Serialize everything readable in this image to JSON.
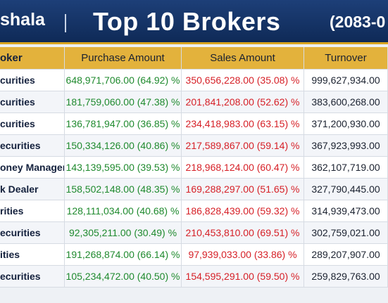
{
  "header": {
    "brand": "shala",
    "title": "Top 10 Brokers",
    "period": "(2083-0"
  },
  "table": {
    "columns": [
      "oker",
      "Purchase Amount",
      "Sales Amount",
      "Turnover"
    ],
    "rows": [
      [
        "curities",
        "648,971,706.00 (64.92) %",
        "350,656,228.00 (35.08) %",
        "999,627,934.00"
      ],
      [
        "curities",
        "181,759,060.00 (47.38) %",
        "201,841,208.00 (52.62) %",
        "383,600,268.00"
      ],
      [
        "curities",
        "136,781,947.00 (36.85) %",
        "234,418,983.00 (63.15) %",
        "371,200,930.00"
      ],
      [
        "ecurities",
        "150,334,126.00 (40.86) %",
        "217,589,867.00 (59.14) %",
        "367,923,993.00"
      ],
      [
        "oney Managers",
        "143,139,595.00 (39.53) %",
        "218,968,124.00 (60.47) %",
        "362,107,719.00"
      ],
      [
        "k Dealer",
        "158,502,148.00 (48.35) %",
        "169,288,297.00 (51.65) %",
        "327,790,445.00"
      ],
      [
        "rities",
        "128,111,034.00 (40.68) %",
        "186,828,439.00 (59.32) %",
        "314,939,473.00"
      ],
      [
        "ecurities",
        "92,305,211.00 (30.49) %",
        "210,453,810.00 (69.51) %",
        "302,759,021.00"
      ],
      [
        "ities",
        "191,268,874.00 (66.14) %",
        "97,939,033.00 (33.86) %",
        "289,207,907.00"
      ],
      [
        "ecurities",
        "105,234,472.00 (40.50) %",
        "154,595,291.00 (59.50) %",
        "259,829,763.00"
      ]
    ]
  }
}
